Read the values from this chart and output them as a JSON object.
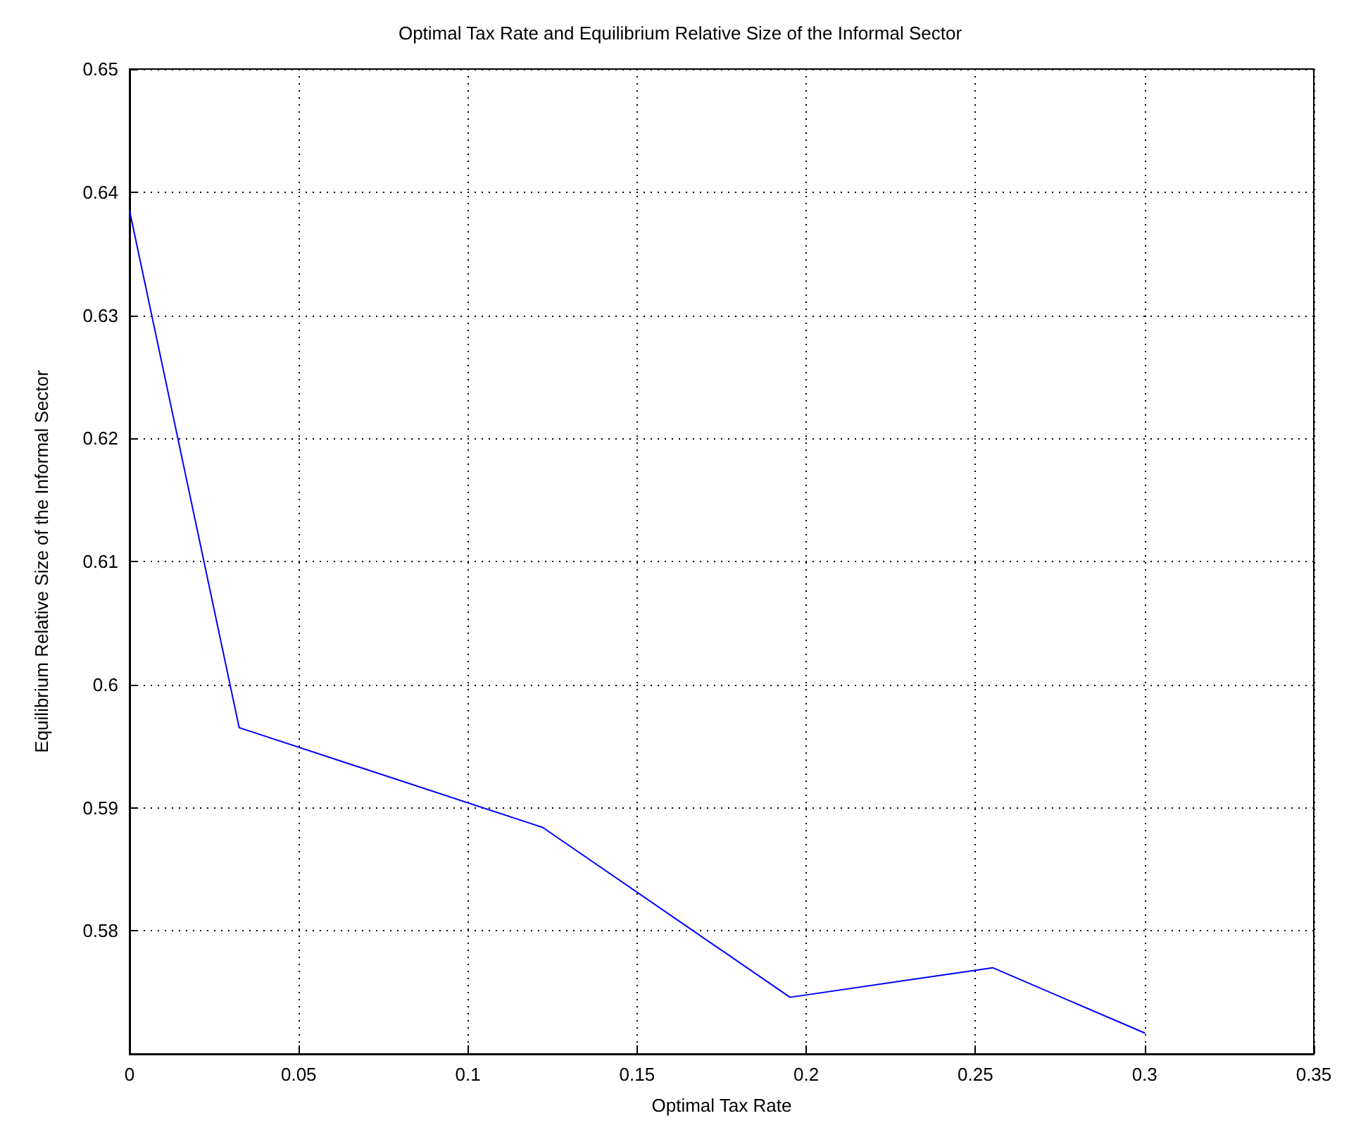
{
  "chart_data": {
    "type": "line",
    "title": "Optimal Tax Rate and Equilibrium Relative Size of the Informal Sector",
    "xlabel": "Optimal Tax Rate",
    "ylabel": "Equilibrium Relative Size of the Informal Sector",
    "x": [
      0,
      0.0324,
      0.1221,
      0.1952,
      0.2551,
      0.3
    ],
    "series": [
      {
        "color": "#0000ff",
        "values": [
          0.6385,
          0.5965,
          0.5884,
          0.5746,
          0.577,
          0.5717
        ]
      }
    ],
    "xlim": [
      0,
      0.35
    ],
    "xticks": [
      0,
      0.05,
      0.1,
      0.15,
      0.2,
      0.25,
      0.3,
      0.35
    ],
    "ylim": [
      0.57,
      0.65
    ],
    "yticks": [
      {
        "value": 0.57,
        "label": null
      },
      0.58,
      0.59,
      0.6,
      0.61,
      0.62,
      0.63,
      0.64,
      0.65
    ],
    "grid": true,
    "marker": "none",
    "line_style": "solid"
  }
}
